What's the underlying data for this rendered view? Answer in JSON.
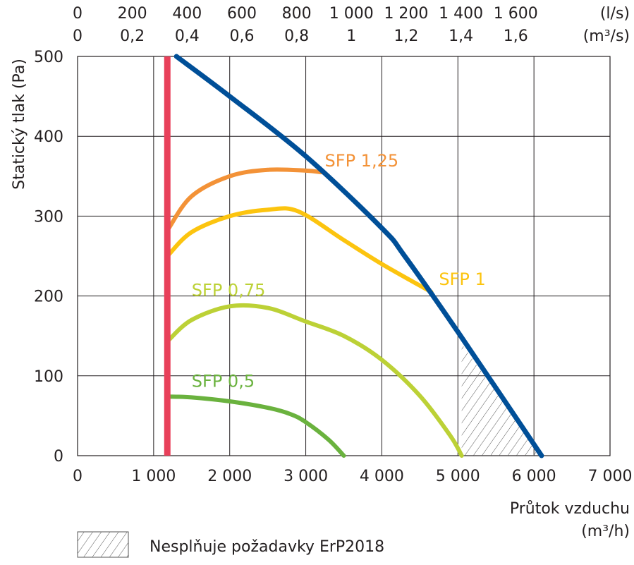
{
  "chart_data": {
    "type": "line",
    "xlabel": "Průtok vzduchu",
    "xlabel_unit": "(m³/h)",
    "ylabel": "Statický tlak (Pa)",
    "xlim": [
      0,
      7000
    ],
    "ylim": [
      0,
      500
    ],
    "x_ticks": [
      0,
      1000,
      2000,
      3000,
      4000,
      5000,
      6000,
      7000
    ],
    "x_tick_labels": [
      "0",
      "1 000",
      "2 000",
      "3 000",
      "4 000",
      "5 000",
      "6 000",
      "7 000"
    ],
    "y_ticks": [
      0,
      100,
      200,
      300,
      400,
      500
    ],
    "y_tick_labels": [
      "0",
      "100",
      "200",
      "300",
      "400",
      "500"
    ],
    "top_axis_ls": {
      "unit": "(l/s)",
      "ticks": [
        0,
        200,
        400,
        600,
        800,
        1000,
        1200,
        1400,
        1600
      ],
      "labels": [
        "0",
        "200",
        "400",
        "600",
        "800",
        "1 000",
        "1 200",
        "1 400",
        "1 600"
      ]
    },
    "top_axis_m3s": {
      "unit": "(m³/s)",
      "ticks": [
        0,
        0.2,
        0.4,
        0.6,
        0.8,
        1,
        1.2,
        1.4,
        1.6
      ],
      "labels": [
        "0",
        "0,2",
        "0,4",
        "0,6",
        "0,8",
        "1",
        "1,2",
        "1,4",
        "1,6"
      ]
    },
    "grid": true,
    "min_flow_line": {
      "x": 1180,
      "color": "#e8405a"
    },
    "series": [
      {
        "key": "max",
        "color": "#004f98",
        "x": [
          1300,
          2000,
          3000,
          4000,
          4300,
          5000,
          6100
        ],
        "y": [
          500,
          450,
          375,
          285,
          250,
          155,
          0
        ]
      },
      {
        "name": "SFP 1,25",
        "color": "#f39237",
        "x": [
          1200,
          1500,
          2000,
          2500,
          3000,
          3200
        ],
        "y": [
          285,
          325,
          350,
          358,
          357,
          355
        ]
      },
      {
        "name": "SFP 1",
        "color": "#fcc40f",
        "x": [
          1200,
          1500,
          2000,
          2500,
          2900,
          3500,
          4000,
          4650
        ],
        "y": [
          252,
          280,
          300,
          308,
          306,
          270,
          240,
          205
        ]
      },
      {
        "name": "SFP 0,75",
        "color": "#bcd136",
        "x": [
          1200,
          1500,
          2000,
          2500,
          3000,
          3500,
          4000,
          4500,
          4900,
          5050
        ],
        "y": [
          145,
          170,
          187,
          185,
          168,
          150,
          120,
          75,
          25,
          0
        ]
      },
      {
        "name": "SFP 0,5",
        "color": "#6ab23e",
        "x": [
          1200,
          1500,
          2000,
          2500,
          2800,
          3000,
          3300,
          3500
        ],
        "y": [
          74,
          73,
          68,
          60,
          52,
          42,
          20,
          0
        ]
      }
    ],
    "hatched_region": {
      "x": [
        5050,
        5050,
        6100
      ],
      "y": [
        140,
        0,
        0
      ]
    },
    "legend": {
      "label": "Nesplňuje požadavky ErP2018",
      "placement": "bottom-left"
    }
  }
}
